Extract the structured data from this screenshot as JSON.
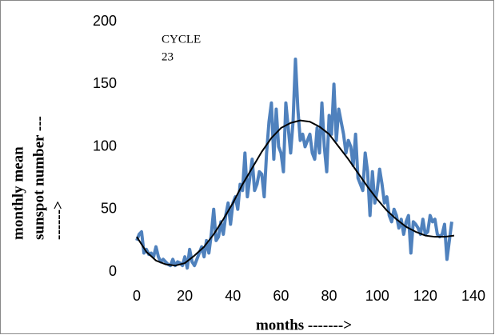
{
  "chart_data": {
    "type": "line",
    "annotation": [
      "CYCLE",
      "23"
    ],
    "x_label": "months  ------->",
    "y_label": [
      "monthly mean",
      "sunspot number ---",
      "------>"
    ],
    "xlim": [
      0,
      140
    ],
    "xticks": [
      0,
      20,
      40,
      60,
      80,
      100,
      120,
      140
    ],
    "ylim": [
      0,
      200
    ],
    "yticks": [
      0,
      50,
      100,
      150,
      200
    ],
    "series": [
      {
        "color": "#4f81bd",
        "x": [
          0,
          1,
          2,
          3,
          4,
          5,
          6,
          7,
          8,
          9,
          10,
          11,
          12,
          13,
          14,
          15,
          16,
          17,
          18,
          19,
          20,
          21,
          22,
          23,
          24,
          25,
          26,
          27,
          28,
          29,
          30,
          31,
          32,
          33,
          34,
          35,
          36,
          37,
          38,
          39,
          40,
          41,
          42,
          43,
          44,
          45,
          46,
          47,
          48,
          49,
          50,
          51,
          52,
          53,
          54,
          55,
          56,
          57,
          58,
          59,
          60,
          61,
          62,
          63,
          64,
          65,
          66,
          67,
          68,
          69,
          70,
          71,
          72,
          73,
          74,
          75,
          76,
          77,
          78,
          79,
          80,
          81,
          82,
          83,
          84,
          85,
          86,
          87,
          88,
          89,
          90,
          91,
          92,
          93,
          94,
          95,
          96,
          97,
          98,
          99,
          100,
          101,
          102,
          103,
          104,
          105,
          106,
          107,
          108,
          109,
          110,
          111,
          112,
          113,
          114,
          115,
          116,
          117,
          118,
          119,
          120,
          121,
          122,
          123,
          124,
          125,
          126,
          127,
          128,
          129,
          130,
          131
        ],
        "values": [
          25,
          30,
          32,
          15,
          18,
          14,
          15,
          12,
          20,
          12,
          8,
          10,
          8,
          6,
          5,
          10,
          5,
          8,
          7,
          5,
          12,
          3,
          18,
          8,
          5,
          10,
          15,
          20,
          12,
          25,
          15,
          30,
          50,
          25,
          28,
          40,
          30,
          45,
          55,
          38,
          55,
          60,
          50,
          70,
          65,
          95,
          60,
          75,
          90,
          65,
          70,
          80,
          78,
          60,
          95,
          120,
          135,
          90,
          130,
          100,
          95,
          80,
          135,
          115,
          95,
          120,
          170,
          130,
          105,
          110,
          100,
          105,
          110,
          95,
          90,
          115,
          95,
          135,
          100,
          80,
          125,
          110,
          150,
          105,
          130,
          120,
          110,
          95,
          105,
          100,
          85,
          110,
          75,
          70,
          65,
          95,
          80,
          45,
          80,
          55,
          65,
          82,
          70,
          55,
          60,
          45,
          40,
          50,
          45,
          35,
          42,
          30,
          40,
          45,
          15,
          40,
          38,
          35,
          30,
          42,
          30,
          32,
          45,
          40,
          42,
          30,
          28,
          30,
          38,
          10,
          25,
          40
        ]
      },
      {
        "color": "#000000",
        "x": [
          0,
          4,
          8,
          12,
          16,
          20,
          24,
          28,
          32,
          36,
          40,
          44,
          48,
          52,
          56,
          60,
          64,
          68,
          72,
          76,
          80,
          84,
          88,
          92,
          96,
          100,
          104,
          108,
          112,
          116,
          120,
          124,
          128,
          132
        ],
        "values": [
          28,
          16,
          9,
          6,
          5,
          7,
          13,
          20,
          30,
          42,
          55,
          70,
          83,
          96,
          107,
          115,
          119,
          121,
          120,
          116,
          110,
          100,
          90,
          79,
          68,
          58,
          49,
          42,
          36,
          32,
          29,
          28,
          28,
          29
        ]
      }
    ]
  }
}
